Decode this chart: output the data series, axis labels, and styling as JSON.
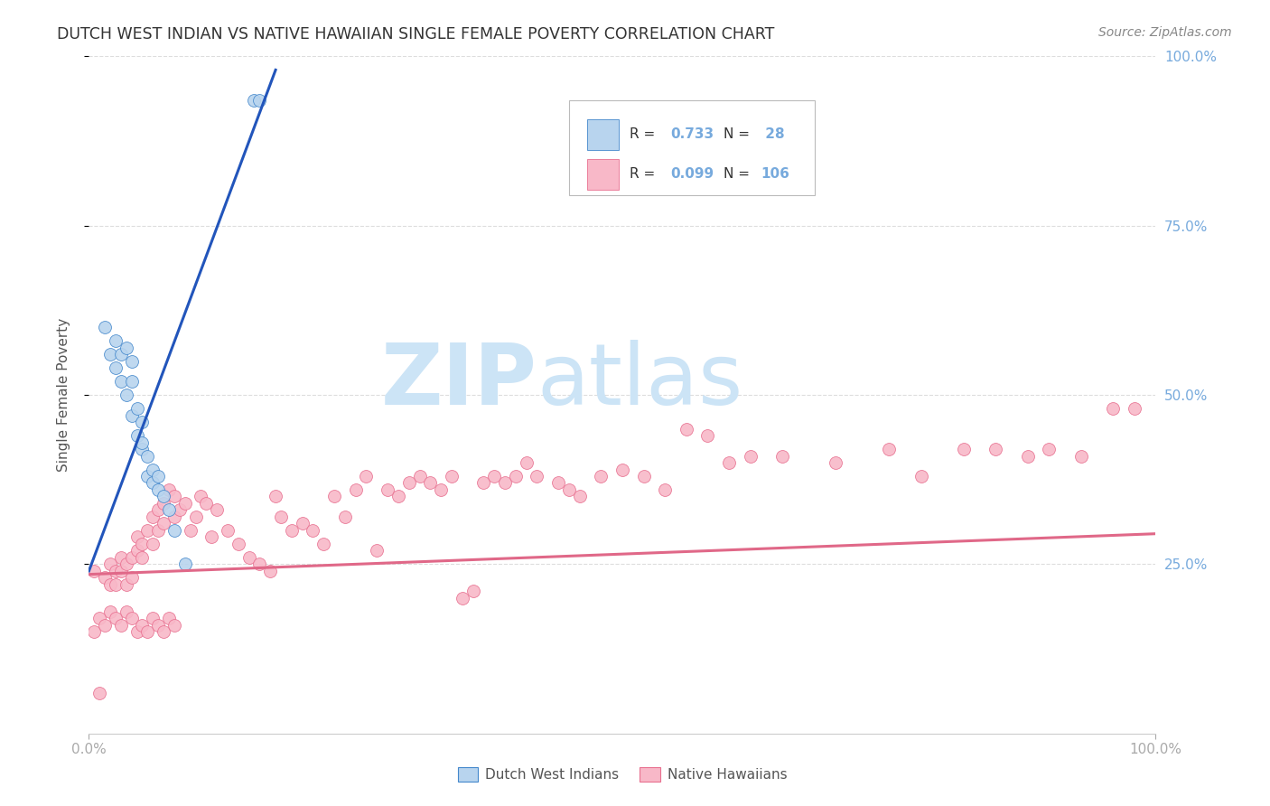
{
  "title": "DUTCH WEST INDIAN VS NATIVE HAWAIIAN SINGLE FEMALE POVERTY CORRELATION CHART",
  "source": "Source: ZipAtlas.com",
  "ylabel": "Single Female Poverty",
  "xlim": [
    0,
    1.0
  ],
  "ylim": [
    0,
    1.0
  ],
  "color_blue_fill": "#b8d4ee",
  "color_blue_edge": "#4488cc",
  "color_pink_fill": "#f8b8c8",
  "color_pink_edge": "#e87090",
  "line_blue": "#2255bb",
  "line_pink": "#e06888",
  "text_color": "#334455",
  "grid_color": "#dddddd",
  "right_tick_color": "#77aadd",
  "watermark_color": "#cce4f6",
  "dutch_x": [
    0.015,
    0.02,
    0.025,
    0.025,
    0.03,
    0.03,
    0.035,
    0.035,
    0.04,
    0.04,
    0.04,
    0.045,
    0.045,
    0.05,
    0.05,
    0.05,
    0.055,
    0.055,
    0.06,
    0.06,
    0.065,
    0.065,
    0.07,
    0.075,
    0.08,
    0.09,
    0.155,
    0.16
  ],
  "dutch_y": [
    0.6,
    0.56,
    0.58,
    0.54,
    0.56,
    0.52,
    0.57,
    0.5,
    0.55,
    0.52,
    0.47,
    0.48,
    0.44,
    0.46,
    0.42,
    0.43,
    0.41,
    0.38,
    0.39,
    0.37,
    0.38,
    0.36,
    0.35,
    0.33,
    0.3,
    0.25,
    0.935,
    0.935
  ],
  "native_x": [
    0.005,
    0.01,
    0.015,
    0.02,
    0.02,
    0.025,
    0.025,
    0.03,
    0.03,
    0.035,
    0.035,
    0.04,
    0.04,
    0.045,
    0.045,
    0.05,
    0.05,
    0.055,
    0.06,
    0.06,
    0.065,
    0.065,
    0.07,
    0.07,
    0.075,
    0.08,
    0.08,
    0.085,
    0.09,
    0.095,
    0.1,
    0.105,
    0.11,
    0.115,
    0.12,
    0.13,
    0.14,
    0.15,
    0.16,
    0.17,
    0.175,
    0.18,
    0.19,
    0.2,
    0.21,
    0.22,
    0.23,
    0.24,
    0.25,
    0.26,
    0.27,
    0.28,
    0.29,
    0.3,
    0.31,
    0.32,
    0.33,
    0.34,
    0.35,
    0.36,
    0.37,
    0.38,
    0.39,
    0.4,
    0.41,
    0.42,
    0.44,
    0.45,
    0.46,
    0.48,
    0.5,
    0.52,
    0.54,
    0.56,
    0.58,
    0.6,
    0.62,
    0.65,
    0.7,
    0.75,
    0.78,
    0.82,
    0.85,
    0.88,
    0.9,
    0.93,
    0.96,
    0.98,
    0.005,
    0.01,
    0.015,
    0.02,
    0.025,
    0.03,
    0.035,
    0.04,
    0.045,
    0.05,
    0.055,
    0.06,
    0.065,
    0.07,
    0.075,
    0.08
  ],
  "native_y": [
    0.24,
    0.06,
    0.23,
    0.22,
    0.25,
    0.24,
    0.22,
    0.26,
    0.24,
    0.25,
    0.22,
    0.26,
    0.23,
    0.29,
    0.27,
    0.28,
    0.26,
    0.3,
    0.32,
    0.28,
    0.33,
    0.3,
    0.34,
    0.31,
    0.36,
    0.35,
    0.32,
    0.33,
    0.34,
    0.3,
    0.32,
    0.35,
    0.34,
    0.29,
    0.33,
    0.3,
    0.28,
    0.26,
    0.25,
    0.24,
    0.35,
    0.32,
    0.3,
    0.31,
    0.3,
    0.28,
    0.35,
    0.32,
    0.36,
    0.38,
    0.27,
    0.36,
    0.35,
    0.37,
    0.38,
    0.37,
    0.36,
    0.38,
    0.2,
    0.21,
    0.37,
    0.38,
    0.37,
    0.38,
    0.4,
    0.38,
    0.37,
    0.36,
    0.35,
    0.38,
    0.39,
    0.38,
    0.36,
    0.45,
    0.44,
    0.4,
    0.41,
    0.41,
    0.4,
    0.42,
    0.38,
    0.42,
    0.42,
    0.41,
    0.42,
    0.41,
    0.48,
    0.48,
    0.15,
    0.17,
    0.16,
    0.18,
    0.17,
    0.16,
    0.18,
    0.17,
    0.15,
    0.16,
    0.15,
    0.17,
    0.16,
    0.15,
    0.17,
    0.16
  ],
  "blue_trendline_x": [
    0.0,
    0.175
  ],
  "blue_trendline_y": [
    0.24,
    0.98
  ],
  "pink_trendline_x": [
    0.0,
    1.0
  ],
  "pink_trendline_y": [
    0.235,
    0.295
  ]
}
